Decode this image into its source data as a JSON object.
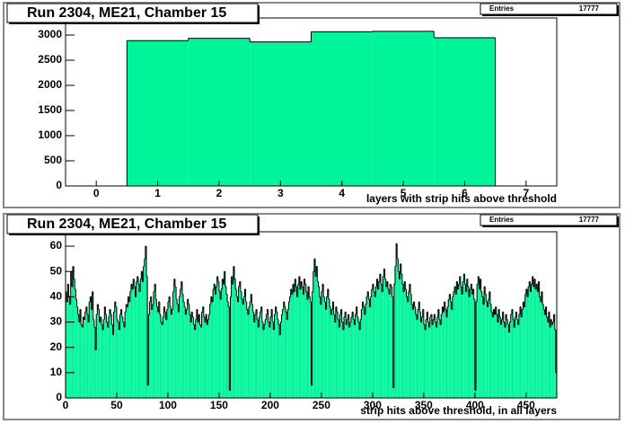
{
  "chart_data": [
    {
      "type": "histogram",
      "title": "Run 2304, ME21, Chamber 15",
      "x_label": "layers with strip hits above threshold",
      "stats": {
        "label": "Entries",
        "value": 17777
      },
      "color": "#00f59a",
      "bins": [
        -0.5,
        0.5,
        1.5,
        2.5,
        3.5,
        4.5,
        5.5,
        6.5,
        7.5
      ],
      "values": [
        0,
        2890,
        2935,
        2865,
        3065,
        3075,
        2947,
        0
      ],
      "xlim": [
        -0.5,
        7.5
      ],
      "xticks": [
        0,
        1,
        2,
        3,
        4,
        5,
        6,
        7
      ],
      "ylim": [
        0,
        3340
      ],
      "yticks": [
        0,
        500,
        1000,
        1500,
        2000,
        2500,
        3000
      ]
    },
    {
      "type": "histogram",
      "title": "Run 2304, ME21, Chamber 15",
      "x_label": "strip hits above threshold, in all layers",
      "stats": {
        "label": "Entries",
        "value": 17777
      },
      "color": "#00f59a",
      "bins": [
        0,
        1,
        2,
        3,
        4,
        5,
        6,
        7,
        8,
        9,
        10,
        11,
        12,
        13,
        14,
        15,
        16,
        17,
        18,
        19,
        20,
        21,
        22,
        23,
        24,
        25,
        26,
        27,
        28,
        29,
        30,
        31,
        32,
        33,
        34,
        35,
        36,
        37,
        38,
        39,
        40,
        41,
        42,
        43,
        44,
        45,
        46,
        47,
        48,
        49,
        50,
        51,
        52,
        53,
        54,
        55,
        56,
        57,
        58,
        59,
        60,
        61,
        62,
        63,
        64,
        65,
        66,
        67,
        68,
        69,
        70,
        71,
        72,
        73,
        74,
        75,
        76,
        77,
        78,
        79,
        80,
        81,
        82,
        83,
        84,
        85,
        86,
        87,
        88,
        89,
        90,
        91,
        92,
        93,
        94,
        95,
        96,
        97,
        98,
        99,
        100,
        101,
        102,
        103,
        104,
        105,
        106,
        107,
        108,
        109,
        110,
        111,
        112,
        113,
        114,
        115,
        116,
        117,
        118,
        119,
        120,
        121,
        122,
        123,
        124,
        125,
        126,
        127,
        128,
        129,
        130,
        131,
        132,
        133,
        134,
        135,
        136,
        137,
        138,
        139,
        140,
        141,
        142,
        143,
        144,
        145,
        146,
        147,
        148,
        149,
        150,
        151,
        152,
        153,
        154,
        155,
        156,
        157,
        158,
        159,
        160,
        161,
        162,
        163,
        164,
        165,
        166,
        167,
        168,
        169,
        170,
        171,
        172,
        173,
        174,
        175,
        176,
        177,
        178,
        179,
        180,
        181,
        182,
        183,
        184,
        185,
        186,
        187,
        188,
        189,
        190,
        191,
        192,
        193,
        194,
        195,
        196,
        197,
        198,
        199,
        200,
        201,
        202,
        203,
        204,
        205,
        206,
        207,
        208,
        209,
        210,
        211,
        212,
        213,
        214,
        215,
        216,
        217,
        218,
        219,
        220,
        221,
        222,
        223,
        224,
        225,
        226,
        227,
        228,
        229,
        230,
        231,
        232,
        233,
        234,
        235,
        236,
        237,
        238,
        239,
        240,
        241,
        242,
        243,
        244,
        245,
        246,
        247,
        248,
        249,
        250,
        251,
        252,
        253,
        254,
        255,
        256,
        257,
        258,
        259,
        260,
        261,
        262,
        263,
        264,
        265,
        266,
        267,
        268,
        269,
        270,
        271,
        272,
        273,
        274,
        275,
        276,
        277,
        278,
        279,
        280,
        281,
        282,
        283,
        284,
        285,
        286,
        287,
        288,
        289,
        290,
        291,
        292,
        293,
        294,
        295,
        296,
        297,
        298,
        299,
        300,
        301,
        302,
        303,
        304,
        305,
        306,
        307,
        308,
        309,
        310,
        311,
        312,
        313,
        314,
        315,
        316,
        317,
        318,
        319,
        320,
        321,
        322,
        323,
        324,
        325,
        326,
        327,
        328,
        329,
        330,
        331,
        332,
        333,
        334,
        335,
        336,
        337,
        338,
        339,
        340,
        341,
        342,
        343,
        344,
        345,
        346,
        347,
        348,
        349,
        350,
        351,
        352,
        353,
        354,
        355,
        356,
        357,
        358,
        359,
        360,
        361,
        362,
        363,
        364,
        365,
        366,
        367,
        368,
        369,
        370,
        371,
        372,
        373,
        374,
        375,
        376,
        377,
        378,
        379,
        380,
        381,
        382,
        383,
        384,
        385,
        386,
        387,
        388,
        389,
        390,
        391,
        392,
        393,
        394,
        395,
        396,
        397,
        398,
        399,
        400,
        401,
        402,
        403,
        404,
        405,
        406,
        407,
        408,
        409,
        410,
        411,
        412,
        413,
        414,
        415,
        416,
        417,
        418,
        419,
        420,
        421,
        422,
        423,
        424,
        425,
        426,
        427,
        428,
        429,
        430,
        431,
        432,
        433,
        434,
        435,
        436,
        437,
        438,
        439,
        440,
        441,
        442,
        443,
        444,
        445,
        446,
        447,
        448,
        449,
        450,
        451,
        452,
        453,
        454,
        455,
        456,
        457,
        458,
        459,
        460,
        461,
        462,
        463,
        464,
        465,
        466,
        467,
        468,
        469,
        470,
        471,
        472,
        473,
        474,
        475,
        476,
        477,
        478,
        479,
        480
      ],
      "values": [
        42,
        38,
        45,
        40,
        37,
        50,
        44,
        52,
        47,
        43,
        39,
        36,
        33,
        30,
        35,
        29,
        28,
        32,
        31,
        34,
        36,
        33,
        30,
        38,
        40,
        35,
        42,
        31,
        28,
        19,
        33,
        37,
        35,
        30,
        32,
        29,
        27,
        31,
        36,
        33,
        30,
        28,
        32,
        35,
        33,
        29,
        25,
        34,
        38,
        36,
        31,
        30,
        27,
        33,
        35,
        32,
        30,
        28,
        34,
        37,
        36,
        40,
        38,
        42,
        45,
        43,
        47,
        44,
        40,
        46,
        48,
        45,
        42,
        47,
        50,
        46,
        52,
        55,
        60,
        48,
        5,
        33,
        38,
        40,
        35,
        37,
        42,
        45,
        39,
        36,
        34,
        38,
        33,
        30,
        29,
        32,
        36,
        34,
        31,
        35,
        38,
        40,
        36,
        33,
        35,
        42,
        47,
        44,
        39,
        37,
        34,
        40,
        43,
        46,
        41,
        38,
        36,
        33,
        35,
        39,
        37,
        33,
        30,
        34,
        32,
        29,
        27,
        31,
        35,
        30,
        33,
        29,
        28,
        34,
        36,
        32,
        30,
        33,
        29,
        31,
        33,
        37,
        40,
        38,
        43,
        45,
        41,
        44,
        48,
        46,
        42,
        39,
        43,
        47,
        45,
        50,
        44,
        41,
        38,
        36,
        3,
        40,
        48,
        45,
        52,
        47,
        43,
        40,
        38,
        44,
        46,
        42,
        39,
        37,
        40,
        43,
        38,
        35,
        33,
        36,
        38,
        41,
        37,
        34,
        30,
        33,
        35,
        31,
        28,
        32,
        34,
        36,
        30,
        27,
        29,
        31,
        33,
        35,
        30,
        28,
        32,
        35,
        30,
        27,
        33,
        36,
        34,
        31,
        29,
        25,
        30,
        33,
        35,
        38,
        36,
        34,
        31,
        35,
        38,
        40,
        43,
        41,
        45,
        42,
        47,
        44,
        40,
        45,
        48,
        43,
        46,
        44,
        41,
        47,
        45,
        42,
        39,
        44,
        40,
        38,
        5,
        42,
        50,
        55,
        48,
        52,
        46,
        44,
        40,
        37,
        42,
        45,
        40,
        38,
        35,
        40,
        43,
        39,
        36,
        33,
        35,
        38,
        33,
        30,
        36,
        34,
        31,
        28,
        33,
        35,
        30,
        27,
        32,
        34,
        29,
        31,
        33,
        28,
        30,
        32,
        34,
        31,
        29,
        33,
        36,
        32,
        30,
        27,
        31,
        35,
        38,
        36,
        33,
        37,
        40,
        42,
        39,
        36,
        40,
        43,
        45,
        42,
        40,
        44,
        47,
        43,
        46,
        49,
        45,
        42,
        48,
        51,
        47,
        44,
        46,
        43,
        41,
        45,
        44,
        40,
        4,
        45,
        52,
        61,
        55,
        50,
        47,
        53,
        49,
        45,
        42,
        46,
        43,
        40,
        38,
        42,
        45,
        41,
        37,
        35,
        38,
        36,
        33,
        31,
        35,
        38,
        34,
        30,
        32,
        35,
        29,
        27,
        31,
        34,
        30,
        28,
        32,
        33,
        29,
        31,
        33,
        30,
        28,
        32,
        35,
        31,
        29,
        33,
        36,
        34,
        38,
        35,
        32,
        36,
        39,
        41,
        38,
        35,
        40,
        42,
        44,
        41,
        46,
        43,
        45,
        48,
        44,
        41,
        46,
        49,
        45,
        42,
        47,
        44,
        40,
        43,
        45,
        41,
        43,
        39,
        3,
        38,
        45,
        48,
        43,
        47,
        42,
        40,
        37,
        44,
        41,
        38,
        36,
        39,
        42,
        37,
        34,
        32,
        35,
        33,
        36,
        33,
        30,
        35,
        32,
        29,
        31,
        34,
        30,
        28,
        33,
        31,
        29,
        26,
        30,
        33,
        35,
        31,
        28,
        32,
        34,
        31,
        29,
        33,
        36,
        32,
        35,
        38,
        36,
        41,
        43,
        40,
        44,
        46,
        42,
        45,
        48,
        44,
        47,
        43,
        45,
        42,
        46,
        40,
        38,
        42,
        37,
        35,
        33,
        36,
        32,
        30,
        34,
        28,
        31,
        29,
        30,
        33,
        27,
        10
      ],
      "xlim": [
        0,
        480
      ],
      "xticks": [
        0,
        50,
        100,
        150,
        200,
        250,
        300,
        350,
        400,
        450
      ],
      "ylim": [
        0,
        65.7
      ],
      "yticks": [
        0,
        10,
        20,
        30,
        40,
        50,
        60
      ]
    }
  ]
}
